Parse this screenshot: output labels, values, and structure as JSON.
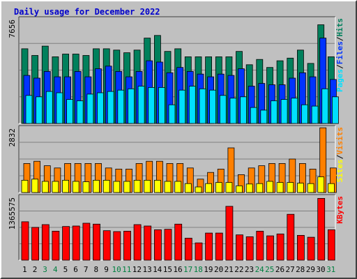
{
  "chart_data": {
    "type": "bar",
    "title": "Daily usage for December 2022",
    "categories": [
      "1",
      "2",
      "3",
      "4",
      "5",
      "6",
      "7",
      "8",
      "9",
      "10",
      "11",
      "12",
      "13",
      "14",
      "15",
      "16",
      "17",
      "18",
      "19",
      "20",
      "21",
      "22",
      "23",
      "24",
      "25",
      "26",
      "27",
      "28",
      "29",
      "30",
      "31"
    ],
    "weekend_days": [
      "3",
      "4",
      "10",
      "11",
      "17",
      "18",
      "24",
      "25",
      "31"
    ],
    "panels": [
      {
        "name": "pages-files-hits",
        "ymax_label": "7656",
        "ylim": [
          0,
          8000
        ],
        "right_label": [
          "Pages",
          "/",
          "Files",
          "/",
          "Hits"
        ],
        "series": [
          {
            "name": "Hits",
            "color": "#00805c",
            "values": [
              5600,
              5100,
              5800,
              5000,
              5200,
              5200,
              5100,
              5600,
              5600,
              5500,
              5300,
              5500,
              6400,
              6600,
              5400,
              5600,
              5000,
              5000,
              5000,
              5000,
              5000,
              5400,
              4400,
              4800,
              4200,
              4700,
              4900,
              5500,
              4500,
              7400,
              5000
            ]
          },
          {
            "name": "Files",
            "color": "#0033ff",
            "values": [
              3600,
              3400,
              3900,
              3500,
              3500,
              3900,
              3500,
              4100,
              4300,
              3900,
              3500,
              3900,
              4700,
              4600,
              3800,
              4200,
              3900,
              3700,
              3500,
              3700,
              3600,
              4100,
              2800,
              3000,
              2900,
              2900,
              3400,
              3800,
              3500,
              6400,
              3300
            ]
          },
          {
            "name": "Pages",
            "color": "#00e0ff",
            "values": [
              2100,
              2000,
              2400,
              2300,
              1800,
              1700,
              2200,
              2300,
              2400,
              2500,
              2600,
              2800,
              2700,
              2700,
              1400,
              2500,
              2800,
              2600,
              2500,
              2100,
              1900,
              2000,
              1200,
              1000,
              1700,
              1800,
              1900,
              1400,
              1300,
              2600,
              2000
            ]
          }
        ]
      },
      {
        "name": "visits-sites",
        "ymax_label": "2832",
        "ylim": [
          0,
          3000
        ],
        "right_label": [
          "Sites",
          "/",
          "Visits"
        ],
        "series": [
          {
            "name": "Visits",
            "color": "#ff8000",
            "values": [
              1300,
              1400,
              1200,
              1100,
              1300,
              1300,
              1300,
              1300,
              1100,
              1050,
              1050,
              1300,
              1400,
              1400,
              1300,
              1300,
              1100,
              600,
              900,
              1050,
              2000,
              800,
              1100,
              1200,
              1300,
              1300,
              1500,
              1300,
              1050,
              2900,
              1100
            ]
          },
          {
            "name": "Sites",
            "color": "#ffff00",
            "values": [
              550,
              600,
              500,
              500,
              550,
              500,
              480,
              550,
              550,
              500,
              500,
              550,
              550,
              550,
              500,
              500,
              400,
              250,
              400,
              450,
              450,
              300,
              380,
              400,
              500,
              450,
              450,
              420,
              400,
              700,
              400
            ]
          }
        ]
      },
      {
        "name": "kbytes",
        "ymax_label": "1365575",
        "ylim": [
          0,
          1400000
        ],
        "right_label": [
          "KBytes"
        ],
        "series": [
          {
            "name": "KBytes",
            "color": "#ff0000",
            "values": [
              820000,
              700000,
              760000,
              620000,
              720000,
              730000,
              790000,
              770000,
              630000,
              610000,
              620000,
              760000,
              730000,
              650000,
              660000,
              770000,
              470000,
              370000,
              580000,
              580000,
              1150000,
              540000,
              500000,
              620000,
              520000,
              560000,
              980000,
              530000,
              490000,
              1320000,
              650000
            ]
          }
        ]
      }
    ],
    "colors": {
      "weekday_label": "#000000",
      "weekend_label": "#008040",
      "grid": "#808080",
      "title": "#0000cc"
    }
  }
}
